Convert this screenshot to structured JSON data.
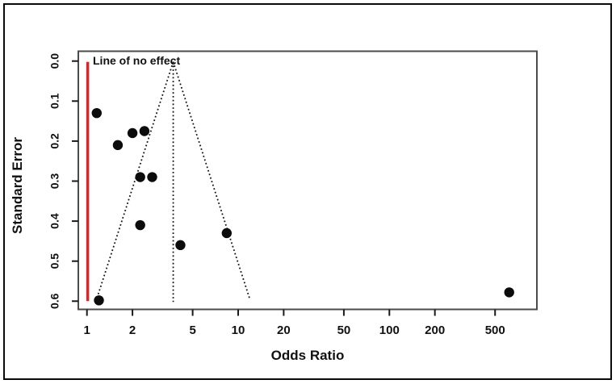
{
  "figure": {
    "kind": "funnel-plot",
    "background": "#ffffff",
    "frame_color": "#0a0a0a"
  },
  "chart_data": {
    "type": "scatter",
    "title": "",
    "xlabel": "Odds Ratio",
    "ylabel": "Standard Error",
    "x_scale": "log10",
    "x_ticks": [
      1,
      2,
      5,
      10,
      20,
      50,
      100,
      200,
      500
    ],
    "y_ticks": [
      "0.0",
      "0.1",
      "0.2",
      "0.3",
      "0.4",
      "0.5",
      "0.6"
    ],
    "y_tick_values": [
      0.0,
      0.1,
      0.2,
      0.3,
      0.4,
      0.5,
      0.6
    ],
    "xlim": [
      0.88,
      940
    ],
    "ylim": [
      0.62,
      -0.03
    ],
    "y_axis_inverted": true,
    "grid": false,
    "legend": "none",
    "points": [
      {
        "or": 1.16,
        "se": 0.13
      },
      {
        "or": 1.6,
        "se": 0.21
      },
      {
        "or": 2.0,
        "se": 0.18
      },
      {
        "or": 2.4,
        "se": 0.175
      },
      {
        "or": 2.25,
        "se": 0.29
      },
      {
        "or": 2.7,
        "se": 0.29
      },
      {
        "or": 2.25,
        "se": 0.41
      },
      {
        "or": 4.15,
        "se": 0.46
      },
      {
        "or": 8.4,
        "se": 0.43
      },
      {
        "or": 1.2,
        "se": 0.598
      },
      {
        "or": 620,
        "se": 0.578
      }
    ],
    "funnel": {
      "apex_or": 3.72,
      "apex_se": 0.0,
      "ci_z": 1.96,
      "se_extent": 0.597,
      "style": "dotted",
      "color": "#141414"
    },
    "no_effect_line": {
      "or": 1,
      "se_from": 0.0,
      "se_to": 0.6,
      "color": "#ee1c1c",
      "label": "Line of no effect",
      "label_color": "#ee1c1c"
    },
    "point_color": "#0c0c0c",
    "axis_color": "#4b4b4b"
  }
}
